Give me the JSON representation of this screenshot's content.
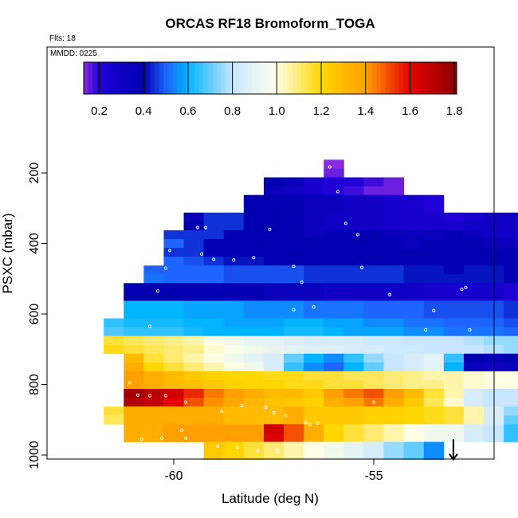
{
  "chart_data": {
    "type": "heatmap",
    "title": "ORCAS RF18 Bromoform_TOGA",
    "flights_note": "Flts: 18",
    "date_note": "MMDD: 0225",
    "xlabel": "Latitude (deg N)",
    "ylabel": "PSXC (mbar)",
    "xlim": [
      -61.5,
      -51.5
    ],
    "ylim": [
      1010,
      120
    ],
    "y_reversed": true,
    "xticks": [
      -60,
      -55
    ],
    "xtick_labels": [
      "-60",
      "-55"
    ],
    "yticks": [
      200,
      400,
      600,
      800,
      1000
    ],
    "ytick_labels": [
      "200",
      "400",
      "600",
      "800",
      "1000"
    ],
    "colorbar": {
      "range": [
        0.13,
        1.81
      ],
      "ticks": [
        0.2,
        0.4,
        0.6,
        0.8,
        1.0,
        1.2,
        1.4,
        1.6,
        1.8
      ],
      "tick_labels": [
        "0.2",
        "0.4",
        "0.6",
        "0.8",
        "1.0",
        "1.2",
        "1.4",
        "1.6",
        "1.8"
      ],
      "stops": [
        {
          "v": 0.13,
          "c": "#8a2be2"
        },
        {
          "v": 0.2,
          "c": "#1f00d8"
        },
        {
          "v": 0.4,
          "c": "#0000b0"
        },
        {
          "v": 0.5,
          "c": "#1e64ff"
        },
        {
          "v": 0.6,
          "c": "#00b4ff"
        },
        {
          "v": 0.8,
          "c": "#c8e6ff"
        },
        {
          "v": 1.0,
          "c": "#ffffe6"
        },
        {
          "v": 1.2,
          "c": "#ffd700"
        },
        {
          "v": 1.4,
          "c": "#ffa000"
        },
        {
          "v": 1.6,
          "c": "#e60000"
        },
        {
          "v": 1.81,
          "c": "#8b0000"
        }
      ]
    },
    "grid": false,
    "cell_width_deg": 0.5,
    "cell_height_mbar": 25,
    "rows": [
      {
        "p": 175,
        "x0": -56.25,
        "values": [
          0.13
        ]
      },
      {
        "p": 200,
        "x0": -56.25,
        "values": [
          0.15
        ]
      },
      {
        "p": 225,
        "x0": -57.75,
        "values": [
          0.4,
          0.35,
          0.25,
          0.2,
          0.2,
          0.18,
          0.15
        ]
      },
      {
        "p": 250,
        "x0": -57.75,
        "values": [
          0.35,
          0.3,
          0.25,
          0.2,
          0.18,
          0.15,
          0.15
        ]
      },
      {
        "p": 275,
        "x0": -58.25,
        "values": [
          0.4,
          0.4,
          0.38,
          0.35,
          0.35,
          0.3,
          0.3,
          0.25,
          0.25,
          0.2
        ]
      },
      {
        "p": 300,
        "x0": -58.25,
        "values": [
          0.4,
          0.4,
          0.38,
          0.35,
          0.35,
          0.3,
          0.3,
          0.25,
          0.25,
          0.2
        ]
      },
      {
        "p": 325,
        "x0": -59.75,
        "values": [
          0.35,
          0.45,
          0.45,
          0.4,
          0.4,
          0.38,
          0.35,
          0.3,
          0.3,
          0.3,
          0.25,
          0.25,
          0.25,
          0.2,
          0.25,
          0.3,
          0.3,
          0.3,
          0.35,
          0.35
        ]
      },
      {
        "p": 350,
        "x0": -59.75,
        "values": [
          0.4,
          0.45,
          0.45,
          0.4,
          0.4,
          0.38,
          0.35,
          0.3,
          0.3,
          0.3,
          0.25,
          0.25,
          0.25,
          0.25,
          0.3,
          0.3,
          0.3,
          0.25,
          0.3,
          0.35
        ]
      },
      {
        "p": 375,
        "x0": -60.25,
        "values": [
          0.45,
          0.45,
          0.45,
          0.4,
          0.4,
          0.4,
          0.38,
          0.35,
          0.38,
          0.38,
          0.38,
          0.35,
          0.35,
          0.35,
          0.38,
          0.35,
          0.3,
          0.3,
          0.35,
          0.38,
          0.25,
          0.2,
          0.4
        ]
      },
      {
        "p": 400,
        "x0": -60.25,
        "values": [
          0.5,
          0.45,
          0.4,
          0.4,
          0.4,
          0.38,
          0.38,
          0.38,
          0.4,
          0.4,
          0.4,
          0.38,
          0.35,
          0.38,
          0.4,
          0.38,
          0.35,
          0.35,
          0.38,
          0.3,
          0.25,
          0.15,
          0.4
        ]
      },
      {
        "p": 425,
        "x0": -60.25,
        "values": [
          0.45,
          0.45,
          0.4,
          0.4,
          0.4,
          0.4,
          0.4,
          0.4,
          0.4,
          0.4,
          0.4,
          0.4,
          0.4,
          0.4,
          0.4,
          0.4,
          0.4,
          0.4,
          0.4,
          0.4,
          0.4,
          0.4,
          0.4,
          0.4
        ]
      },
      {
        "p": 450,
        "x0": -60.25,
        "values": [
          0.5,
          0.48,
          0.45,
          0.42,
          0.42,
          0.4,
          0.4,
          0.4,
          0.4,
          0.4,
          0.4,
          0.4,
          0.4,
          0.4,
          0.4,
          0.4,
          0.4,
          0.4,
          0.4,
          0.4,
          0.4,
          0.4,
          0.4,
          0.4
        ]
      },
      {
        "p": 475,
        "x0": -60.75,
        "values": [
          0.5,
          0.5,
          0.5,
          0.5,
          0.48,
          0.48,
          0.48,
          0.48,
          0.45,
          0.45,
          0.45,
          0.45,
          0.45,
          0.42,
          0.42,
          0.4,
          0.42,
          0.42,
          0.4,
          0.4,
          0.4,
          0.4,
          0.4,
          0.4,
          0.4,
          0.4,
          0.45
        ]
      },
      {
        "p": 500,
        "x0": -60.75,
        "values": [
          0.52,
          0.5,
          0.5,
          0.5,
          0.48,
          0.48,
          0.48,
          0.48,
          0.45,
          0.45,
          0.45,
          0.45,
          0.45,
          0.42,
          0.42,
          0.42,
          0.42,
          0.42,
          0.4,
          0.4,
          0.4,
          0.4,
          0.4,
          0.4,
          0.4,
          0.4,
          0.4
        ]
      },
      {
        "p": 525,
        "x0": -61.25,
        "values": [
          0.4,
          0.4,
          0.4,
          0.4,
          0.4,
          0.38,
          0.38,
          0.35,
          0.35,
          0.35,
          0.3,
          0.3,
          0.3,
          0.3,
          0.28,
          0.25,
          0.25,
          0.25,
          0.25,
          0.22,
          0.22,
          0.22,
          0.25,
          0.25,
          0.28,
          0.3,
          0.35,
          0.4,
          0.4
        ]
      },
      {
        "p": 550,
        "x0": -61.25,
        "values": [
          0.4,
          0.4,
          0.4,
          0.4,
          0.4,
          0.38,
          0.38,
          0.35,
          0.35,
          0.35,
          0.3,
          0.3,
          0.3,
          0.3,
          0.28,
          0.25,
          0.25,
          0.25,
          0.25,
          0.22,
          0.22,
          0.22,
          0.25,
          0.25,
          0.28,
          0.3,
          0.35,
          0.4,
          0.4
        ]
      },
      {
        "p": 575,
        "x0": -61.25,
        "values": [
          0.6,
          0.6,
          0.6,
          0.58,
          0.58,
          0.58,
          0.55,
          0.55,
          0.55,
          0.52,
          0.52,
          0.52,
          0.5,
          0.5,
          0.5,
          0.48,
          0.48,
          0.48,
          0.48,
          0.45,
          0.45,
          0.45,
          0.42,
          0.42,
          0.4,
          0.4,
          0.4,
          0.4,
          0.4
        ]
      },
      {
        "p": 600,
        "x0": -61.25,
        "values": [
          0.6,
          0.6,
          0.6,
          0.58,
          0.58,
          0.58,
          0.55,
          0.55,
          0.55,
          0.52,
          0.52,
          0.52,
          0.5,
          0.5,
          0.5,
          0.48,
          0.48,
          0.48,
          0.48,
          0.45,
          0.45,
          0.45,
          0.42,
          0.42,
          0.4,
          0.4,
          0.4,
          0.4,
          0.4
        ]
      },
      {
        "p": 625,
        "x0": -61.75,
        "values": [
          0.65,
          0.62,
          0.62,
          0.62,
          0.6,
          0.6,
          0.58,
          0.58,
          0.58,
          0.6,
          0.6,
          0.58,
          0.58,
          0.55,
          0.55,
          0.52,
          0.52,
          0.5,
          0.5,
          0.5,
          0.48,
          0.48,
          0.48,
          0.45,
          0.45,
          0.42,
          0.42,
          0.4,
          0.4,
          0.4,
          0.62
        ]
      },
      {
        "p": 650,
        "x0": -61.75,
        "values": [
          0.68,
          0.65,
          0.65,
          0.65,
          0.62,
          0.6,
          0.6,
          0.6,
          0.6,
          0.62,
          0.62,
          0.6,
          0.58,
          0.58,
          0.58,
          0.55,
          0.55,
          0.52,
          0.52,
          0.52,
          0.5,
          0.5,
          0.48,
          0.48,
          0.48,
          0.45,
          0.45,
          0.42,
          0.42,
          0.4,
          0.62
        ]
      },
      {
        "p": 675,
        "x0": -61.75,
        "values": [
          1.15,
          1.12,
          1.1,
          1.08,
          1.05,
          1.0,
          0.95,
          0.92,
          0.9,
          0.88,
          0.85,
          0.85,
          0.85,
          0.82,
          0.82,
          0.8,
          0.8,
          0.8,
          0.78,
          0.75,
          0.75,
          0.72,
          0.72,
          0.7,
          0.7,
          0.68,
          0.68,
          0.65,
          0.65,
          0.65,
          0.7
        ]
      },
      {
        "p": 700,
        "x0": -61.75,
        "values": [
          1.18,
          1.15,
          1.12,
          1.1,
          1.08,
          1.02,
          0.98,
          0.95,
          0.92,
          0.9,
          0.88,
          0.88,
          0.85,
          0.85,
          0.82,
          0.82,
          0.8,
          0.8,
          0.8,
          0.78,
          0.75,
          0.75,
          0.72,
          0.72,
          0.7,
          0.7,
          0.68,
          0.68,
          0.65,
          0.65,
          0.7
        ]
      },
      {
        "p": 725,
        "x0": -61.25,
        "values": [
          1.3,
          1.15,
          1.1,
          1.05,
          1.0,
          0.95,
          0.9,
          0.85,
          0.7,
          0.6,
          0.55,
          0.65,
          0.75,
          0.8,
          0.85,
          0.9,
          0.65,
          0.4,
          0.35,
          0.4,
          0.4,
          0.55,
          0.5,
          0.6,
          0.7,
          0.8,
          0.8,
          0.85,
          0.9
        ]
      },
      {
        "p": 750,
        "x0": -61.25,
        "values": [
          1.35,
          1.2,
          1.15,
          1.1,
          1.05,
          1.0,
          0.95,
          0.85,
          0.65,
          0.55,
          0.5,
          0.6,
          0.7,
          0.8,
          0.85,
          0.9,
          0.6,
          0.35,
          0.3,
          0.35,
          0.4,
          0.55,
          0.5,
          0.6,
          0.7,
          0.8,
          0.8,
          0.85,
          0.95
        ]
      },
      {
        "p": 775,
        "x0": -61.25,
        "values": [
          1.4,
          1.35,
          1.3,
          1.25,
          1.22,
          1.2,
          1.2,
          1.18,
          1.18,
          1.15,
          1.15,
          1.12,
          1.12,
          1.1,
          1.08,
          1.05,
          1.05,
          1.02,
          1.0,
          1.0,
          0.95,
          0.92,
          0.9,
          0.88,
          0.85,
          0.8,
          0.8
        ]
      },
      {
        "p": 800,
        "x0": -61.25,
        "values": [
          1.4,
          1.35,
          1.3,
          1.28,
          1.25,
          1.22,
          1.2,
          1.2,
          1.18,
          1.18,
          1.15,
          1.15,
          1.12,
          1.1,
          1.08,
          1.08,
          1.05,
          1.02,
          1.0,
          1.0,
          0.95,
          0.92,
          0.9,
          0.88,
          0.85,
          0.82,
          0.82
        ]
      },
      {
        "p": 825,
        "x0": -61.25,
        "values": [
          1.75,
          1.7,
          1.65,
          1.55,
          1.45,
          1.4,
          1.35,
          1.3,
          1.3,
          1.25,
          1.4,
          1.45,
          1.5,
          1.4,
          1.3,
          1.15,
          1.05,
          0.85,
          0.8,
          0.8,
          0.82,
          0.82,
          0.85,
          0.85,
          0.88,
          0.9
        ]
      },
      {
        "p": 850,
        "x0": -61.25,
        "values": [
          1.72,
          1.68,
          1.6,
          1.5,
          1.42,
          1.38,
          1.32,
          1.28,
          1.25,
          1.22,
          1.35,
          1.4,
          1.45,
          1.35,
          1.25,
          1.12,
          1.02,
          0.85,
          0.8,
          0.8,
          0.82,
          0.82,
          0.85,
          0.85,
          0.88,
          0.9
        ]
      },
      {
        "p": 875,
        "x0": -61.75,
        "values": [
          1.15,
          1.35,
          1.35,
          1.35,
          1.35,
          1.35,
          1.3,
          1.3,
          1.3,
          1.35,
          1.25,
          1.25,
          1.25,
          1.22,
          1.22,
          1.2,
          1.18,
          1.15,
          1.05,
          0.85,
          0.75,
          0.65,
          0.65,
          0.65,
          0.7,
          0.7,
          0.75,
          0.75
        ]
      },
      {
        "p": 900,
        "x0": -61.75,
        "values": [
          1.12,
          1.35,
          1.35,
          1.35,
          1.35,
          1.35,
          1.3,
          1.3,
          1.3,
          1.35,
          1.25,
          1.25,
          1.25,
          1.22,
          1.22,
          1.2,
          1.18,
          1.15,
          1.05,
          0.85,
          0.7,
          0.65,
          0.65,
          0.65,
          0.7,
          0.7,
          0.75,
          0.75
        ]
      },
      {
        "p": 925,
        "x0": -61.25,
        "values": [
          1.35,
          1.35,
          1.4,
          1.4,
          1.4,
          1.4,
          1.4,
          1.65,
          1.5,
          1.35,
          1.2,
          1.15,
          1.1,
          1.05,
          1.0,
          0.95,
          0.95,
          0.85,
          0.8,
          0.65,
          0.6,
          0.62,
          0.65,
          0.7,
          0.65
        ]
      },
      {
        "p": 950,
        "x0": -61.25,
        "values": [
          1.35,
          1.35,
          1.4,
          1.4,
          1.4,
          1.4,
          1.4,
          1.62,
          1.5,
          1.35,
          1.2,
          1.15,
          1.1,
          1.05,
          1.0,
          0.95,
          0.95,
          0.85,
          0.8,
          0.65,
          0.6,
          0.62,
          0.65,
          0.7,
          0.65
        ]
      },
      {
        "p": 975,
        "x0": -59.25,
        "values": [
          1.25,
          1.2,
          1.15,
          1.1,
          1.05,
          1.0,
          0.95,
          0.9,
          0.85,
          0.75,
          0.7,
          0.55
        ]
      },
      {
        "p": 1000,
        "x0": -59.25,
        "values": [
          1.25,
          1.2,
          1.15,
          1.1,
          1.05,
          1.0,
          0.95,
          0.9,
          0.85,
          0.75,
          0.7,
          0.55
        ]
      }
    ],
    "sample_points": [
      [
        -56.1,
        183
      ],
      [
        -55.9,
        253
      ],
      [
        -57.6,
        360
      ],
      [
        -59.2,
        355
      ],
      [
        -59.4,
        355
      ],
      [
        -59.8,
        355
      ],
      [
        -55.7,
        343
      ],
      [
        -55.4,
        375
      ],
      [
        -60.1,
        420
      ],
      [
        -59.3,
        430
      ],
      [
        -59.0,
        445
      ],
      [
        -58.5,
        447
      ],
      [
        -58.0,
        440
      ],
      [
        -60.2,
        470
      ],
      [
        -57.0,
        465
      ],
      [
        -55.3,
        468
      ],
      [
        -56.8,
        510
      ],
      [
        -60.4,
        535
      ],
      [
        -57.0,
        588
      ],
      [
        -56.5,
        580
      ],
      [
        -54.6,
        545
      ],
      [
        -53.5,
        590
      ],
      [
        -52.8,
        530
      ],
      [
        -52.7,
        525
      ],
      [
        -60.6,
        635
      ],
      [
        -52.6,
        645
      ],
      [
        -53.7,
        645
      ],
      [
        -61.3,
        755
      ],
      [
        -61.1,
        795
      ],
      [
        -60.9,
        830
      ],
      [
        -60.6,
        832
      ],
      [
        -60.2,
        832
      ],
      [
        -59.7,
        850
      ],
      [
        -58.3,
        860
      ],
      [
        -57.2,
        888
      ],
      [
        -55.0,
        850
      ],
      [
        -57.7,
        865
      ],
      [
        -57.5,
        880
      ],
      [
        -56.7,
        908
      ],
      [
        -56.6,
        913
      ],
      [
        -56.4,
        910
      ],
      [
        -58.8,
        875
      ],
      [
        -61.4,
        948
      ],
      [
        -60.8,
        955
      ],
      [
        -60.3,
        952
      ],
      [
        -59.7,
        952
      ],
      [
        -58.9,
        975
      ],
      [
        -58.4,
        978
      ],
      [
        -57.9,
        988
      ],
      [
        -57.4,
        990
      ],
      [
        -56.5,
        990
      ],
      [
        -56.3,
        994
      ],
      [
        -57.4,
        985
      ],
      [
        -59.8,
        930
      ]
    ],
    "arrow_marker": {
      "x": -53.0,
      "p_top": 955,
      "p_bottom": 1015
    }
  }
}
